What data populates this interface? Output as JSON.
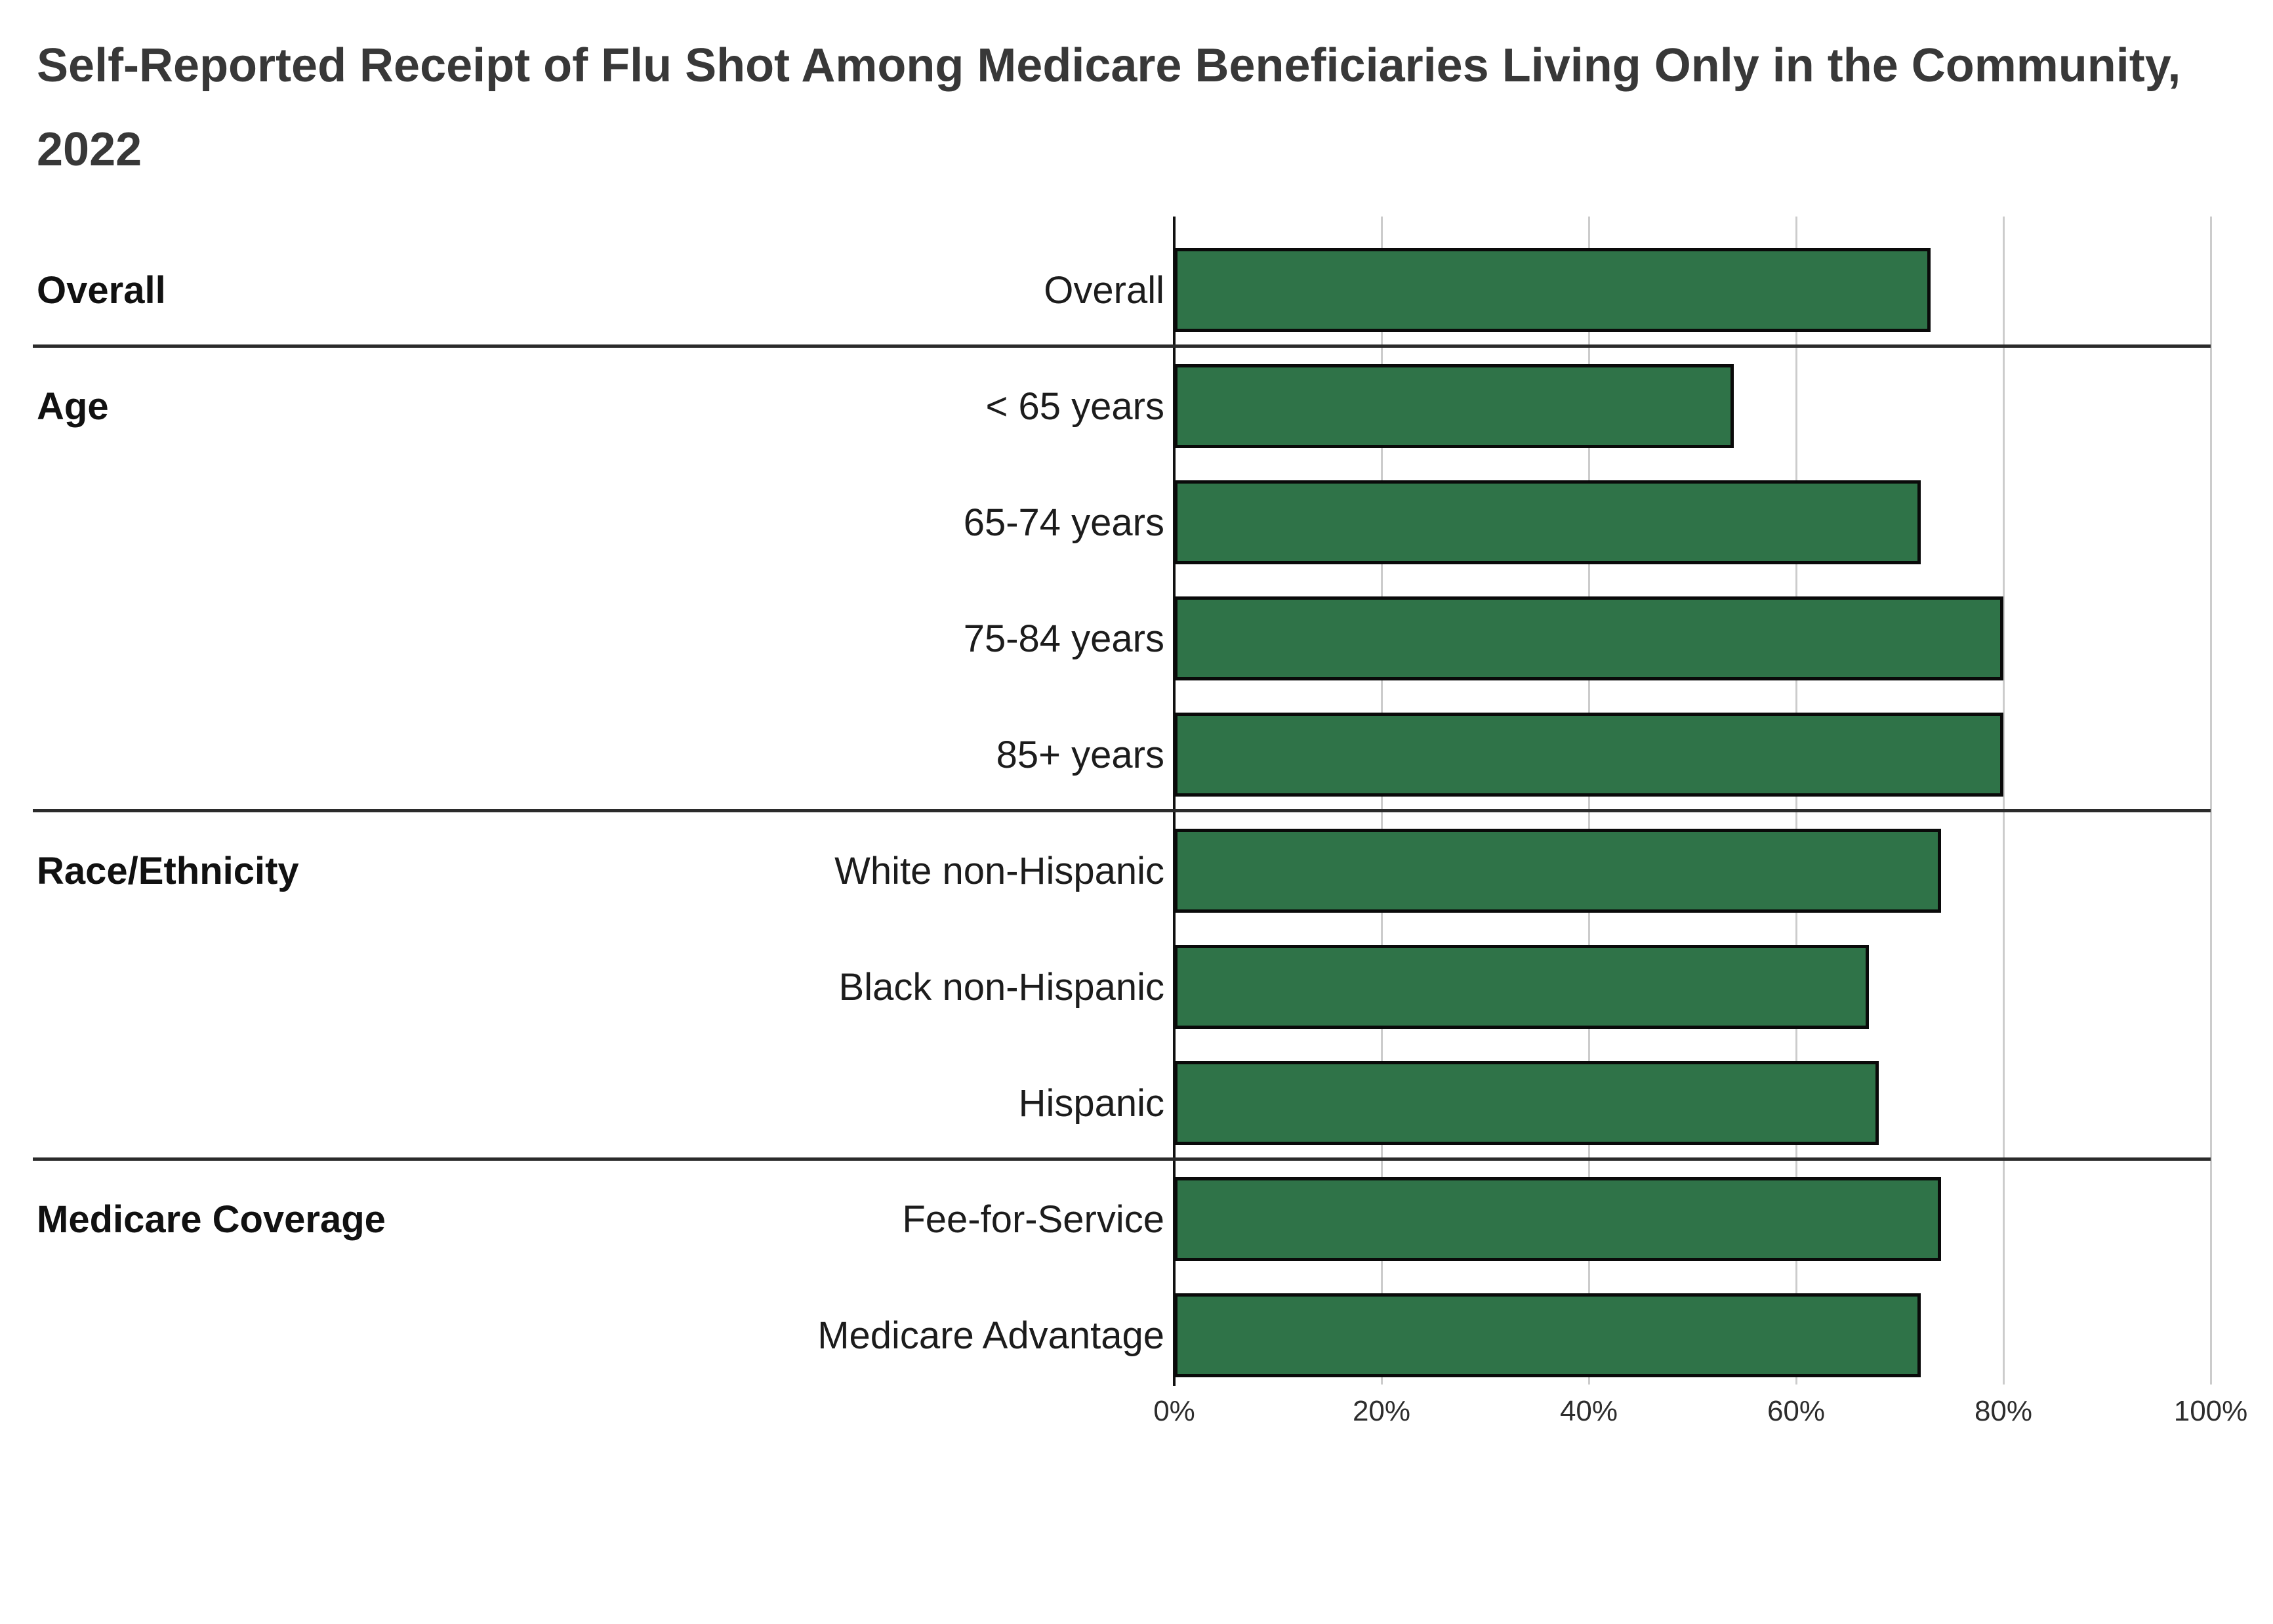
{
  "title": "Self-Reported Receipt of Flu Shot Among Medicare Beneficiaries Living Only in the Community, 2022",
  "colors": {
    "bar_fill": "#2F7348",
    "bar_border": "#0a0a0a",
    "gridline": "#cccccc",
    "separator": "#2b2b2b",
    "title_text": "#383838",
    "label_text": "#1c1c1c"
  },
  "chart_data": {
    "type": "bar",
    "orientation": "horizontal",
    "title": "Self-Reported Receipt of Flu Shot Among Medicare Beneficiaries Living Only in the Community, 2022",
    "xlabel": "",
    "ylabel": "",
    "xlim": [
      0,
      100
    ],
    "x_ticks": [
      "0%",
      "20%",
      "40%",
      "60%",
      "80%",
      "100%"
    ],
    "grid": true,
    "legend": false,
    "unit": "percent",
    "group_labels": [
      "Overall",
      "Age",
      "Race/Ethnicity",
      "Medicare Coverage"
    ],
    "group_sizes": [
      1,
      4,
      3,
      2
    ],
    "categories": [
      "Overall",
      "< 65 years",
      "65-74 years",
      "75-84 years",
      "85+ years",
      "White non-Hispanic",
      "Black non-Hispanic",
      "Hispanic",
      "Fee-for-Service",
      "Medicare Advantage"
    ],
    "values": [
      73,
      54,
      72,
      80,
      80,
      74,
      67,
      68,
      74,
      72
    ]
  }
}
